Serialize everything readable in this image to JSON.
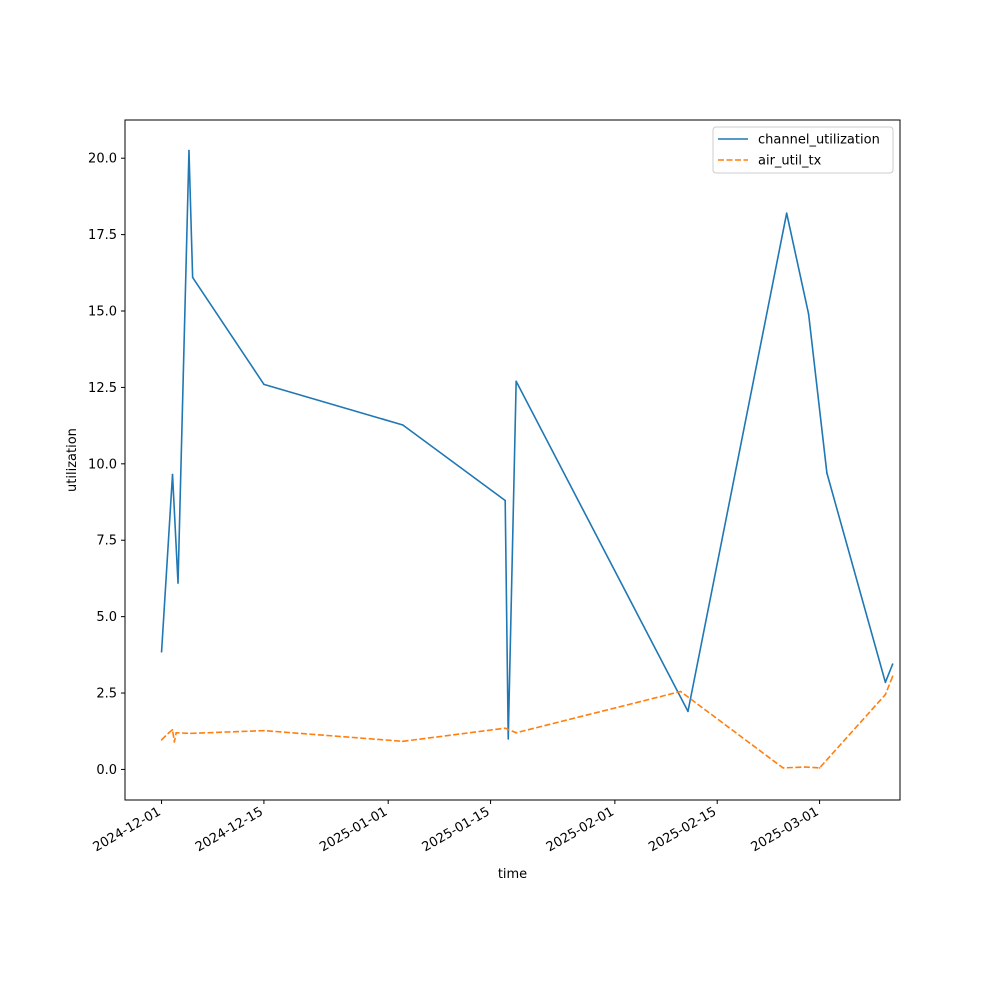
{
  "chart_data": {
    "type": "line",
    "title": "",
    "xlabel": "time",
    "ylabel": "utilization",
    "x_tick_labels": [
      "2024-12-01",
      "2024-12-15",
      "2025-01-01",
      "2025-01-15",
      "2025-02-01",
      "2025-02-15",
      "2025-03-01"
    ],
    "y_tick_labels": [
      "0.0",
      "2.5",
      "5.0",
      "7.5",
      "10.0",
      "12.5",
      "15.0",
      "17.5",
      "20.0"
    ],
    "y_ticks": [
      0,
      2.5,
      5,
      7.5,
      10,
      12.5,
      15,
      17.5,
      20
    ],
    "xlim": [
      "2024-11-26",
      "2025-03-12"
    ],
    "ylim": [
      -1.0,
      21.25
    ],
    "grid": false,
    "legend_position": "top-right",
    "series": [
      {
        "name": "channel_utilization",
        "color": "#1f77b4",
        "dash": "solid",
        "points": [
          [
            "2024-12-01",
            3.85
          ],
          [
            "2024-12-02 12:00",
            9.65
          ],
          [
            "2024-12-03 06:00",
            6.1
          ],
          [
            "2024-12-04 18:00",
            20.25
          ],
          [
            "2024-12-05 06:00",
            16.1
          ],
          [
            "2024-12-15",
            12.6
          ],
          [
            "2025-01-03",
            11.27
          ],
          [
            "2025-01-17",
            8.8
          ],
          [
            "2025-01-17 10:00",
            1.0
          ],
          [
            "2025-01-18 12:00",
            12.7
          ],
          [
            "2025-02-11",
            1.9
          ],
          [
            "2025-02-24 12:00",
            18.2
          ],
          [
            "2025-02-27 12:00",
            14.9
          ],
          [
            "2025-03-02",
            9.7
          ],
          [
            "2025-03-10",
            2.85
          ],
          [
            "2025-03-11",
            3.45
          ]
        ]
      },
      {
        "name": "air_util_tx",
        "color": "#ff7f0e",
        "dash": "dashed",
        "points": [
          [
            "2024-12-01",
            0.97
          ],
          [
            "2024-12-02",
            1.2
          ],
          [
            "2024-12-02 12:00",
            1.3
          ],
          [
            "2024-12-02 18:00",
            0.9
          ],
          [
            "2024-12-03",
            1.2
          ],
          [
            "2024-12-05",
            1.18
          ],
          [
            "2024-12-15",
            1.27
          ],
          [
            "2025-01-03",
            0.92
          ],
          [
            "2025-01-17",
            1.35
          ],
          [
            "2025-01-18 12:00",
            1.2
          ],
          [
            "2025-02-10",
            2.55
          ],
          [
            "2025-02-24",
            0.05
          ],
          [
            "2025-02-27",
            0.08
          ],
          [
            "2025-03-01",
            0.05
          ],
          [
            "2025-03-10",
            2.45
          ],
          [
            "2025-03-11",
            3.05
          ]
        ]
      }
    ]
  }
}
